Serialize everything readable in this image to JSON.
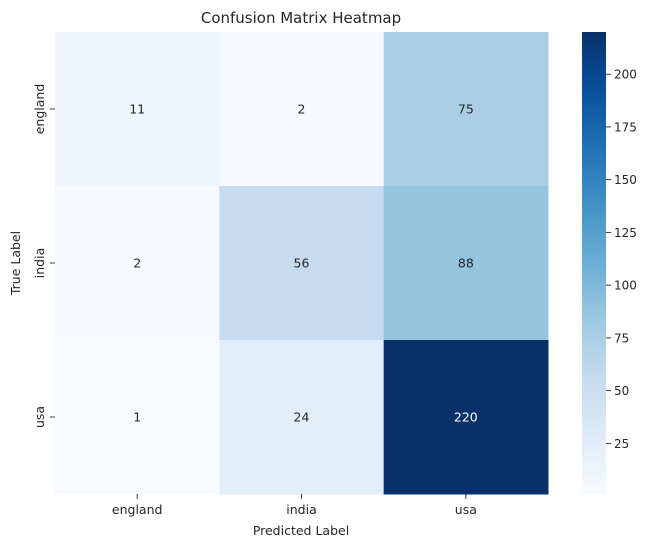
{
  "chart_data": {
    "type": "heatmap",
    "title": "Confusion Matrix Heatmap",
    "xlabel": "Predicted Label",
    "ylabel": "True Label",
    "x_categories": [
      "england",
      "india",
      "usa"
    ],
    "y_categories": [
      "england",
      "india",
      "usa"
    ],
    "values": [
      [
        11,
        2,
        75
      ],
      [
        2,
        56,
        88
      ],
      [
        1,
        24,
        220
      ]
    ],
    "colormap": "Blues",
    "colorbar": {
      "range": [
        1,
        220
      ],
      "ticks": [
        25,
        50,
        75,
        100,
        125,
        150,
        175,
        200
      ]
    },
    "annotations": true,
    "grid": false
  }
}
